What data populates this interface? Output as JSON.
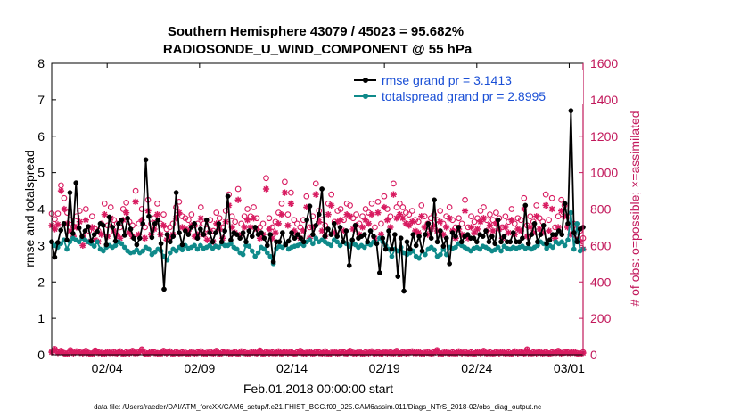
{
  "chart_data": {
    "type": "line",
    "title": "Southern Hemisphere 43079 / 45023 = 95.682%",
    "subtitle": "RADIOSONDE_U_WIND_COMPONENT @ 55 hPa",
    "xlabel": "Feb.01,2018 00:00:00 start",
    "ylabel": "rmse and totalspread",
    "y2label": "# of obs: o=possible; ×=assimilated",
    "x_ticks": [
      {
        "day": 3,
        "label": "02/04"
      },
      {
        "day": 8,
        "label": "02/09"
      },
      {
        "day": 13,
        "label": "02/14"
      },
      {
        "day": 18,
        "label": "02/19"
      },
      {
        "day": 23,
        "label": "02/24"
      },
      {
        "day": 28,
        "label": "03/01"
      }
    ],
    "xlim": [
      0,
      28.75
    ],
    "ylim": [
      0,
      8
    ],
    "y_ticks": [
      0,
      1,
      2,
      3,
      4,
      5,
      6,
      7,
      8
    ],
    "y2lim": [
      0,
      1600
    ],
    "y2_ticks": [
      0,
      200,
      400,
      600,
      800,
      1000,
      1200,
      1400,
      1600
    ],
    "colors": {
      "rmse": "#000000",
      "spread": "#0f8a8a",
      "obs": "#d81b60",
      "axis_right": "#c2185b"
    },
    "series": [
      {
        "name": "rmse grand pr = 3.1413",
        "values": [
          3.1,
          2.68,
          3.08,
          3.42,
          3.6,
          3.15,
          4.45,
          3.33,
          4.72,
          3.48,
          3.25,
          3.4,
          3.52,
          3.12,
          3.3,
          3.38,
          3.6,
          3.55,
          3.02,
          3.78,
          3.5,
          3.12,
          3.6,
          3.7,
          3.28,
          3.75,
          3.45,
          3.2,
          3.02,
          3.2,
          3.6,
          5.35,
          3.8,
          3.22,
          3.6,
          3.7,
          3.05,
          1.8,
          3.3,
          3.1,
          3.25,
          4.45,
          3.35,
          3.02,
          3.4,
          3.3,
          3.5,
          3.6,
          3.2,
          3.45,
          3.3,
          3.7,
          3.35,
          3.1,
          3.35,
          3.6,
          3.1,
          3.4,
          4.35,
          3.15,
          3.35,
          3.3,
          3.2,
          3.35,
          3.1,
          3.4,
          3.25,
          3.5,
          3.3,
          3.35,
          3.2,
          3.0,
          3.3,
          2.55,
          3.1,
          3.1,
          3.35,
          3.02,
          3.12,
          3.35,
          3.2,
          3.3,
          3.2,
          3.1,
          3.7,
          4.08,
          3.3,
          3.55,
          3.85,
          4.55,
          3.25,
          3.45,
          3.3,
          3.6,
          3.25,
          3.5,
          3.1,
          3.4,
          2.45,
          3.15,
          3.55,
          3.2,
          3.25,
          3.3,
          3.1,
          3.4,
          3.25,
          3.05,
          2.25,
          3.2,
          2.9,
          3.4,
          2.9,
          3.3,
          2.15,
          3.2,
          1.75,
          3.1,
          2.9,
          3.3,
          3.0,
          3.25,
          2.85,
          3.3,
          3.6,
          3.2,
          4.25,
          3.1,
          3.4,
          2.98,
          3.2,
          2.5,
          3.35,
          3.25,
          3.5,
          3.1,
          3.25,
          3.3,
          3.2,
          3.2,
          3.1,
          3.3,
          3.25,
          3.4,
          3.1,
          3.25,
          3.05,
          3.7,
          3.1,
          3.25,
          3.1,
          3.1,
          3.35,
          3.1,
          3.1,
          3.2,
          4.1,
          3.05,
          3.3,
          3.6,
          3.1,
          3.3,
          3.55,
          3.05,
          3.15,
          3.3,
          3.3,
          3.4,
          3.3,
          4.15,
          3.6,
          6.7,
          3.35,
          3.1,
          3.45,
          3.5
        ]
      },
      {
        "name": "totalspread grand pr = 2.8995",
        "values": [
          3.1,
          3.0,
          2.95,
          3.05,
          3.15,
          2.9,
          3.1,
          3.2,
          3.15,
          3.1,
          3.2,
          3.15,
          3.1,
          3.05,
          2.98,
          3.1,
          2.9,
          2.85,
          2.95,
          3.0,
          2.95,
          3.0,
          3.1,
          3.05,
          2.95,
          2.85,
          2.8,
          2.82,
          2.88,
          2.8,
          2.85,
          2.95,
          2.9,
          2.75,
          2.82,
          2.9,
          2.85,
          2.7,
          2.6,
          2.8,
          2.9,
          2.85,
          2.95,
          2.88,
          3.0,
          2.92,
          2.95,
          3.0,
          2.9,
          3.0,
          2.92,
          2.95,
          3.0,
          2.92,
          2.98,
          2.95,
          3.05,
          3.0,
          3.0,
          3.05,
          2.95,
          2.9,
          2.8,
          2.75,
          3.0,
          2.98,
          2.85,
          2.7,
          2.8,
          2.95,
          2.9,
          2.8,
          2.7,
          2.5,
          2.92,
          2.98,
          2.95,
          3.05,
          2.9,
          2.95,
          2.98,
          3.0,
          3.05,
          3.0,
          3.1,
          3.15,
          3.05,
          3.2,
          3.1,
          3.15,
          3.1,
          3.05,
          3.0,
          3.15,
          3.1,
          3.0,
          3.1,
          3.05,
          2.98,
          3.05,
          3.02,
          2.95,
          3.0,
          2.95,
          3.05,
          3.02,
          3.1,
          3.05,
          3.2,
          3.1,
          3.0,
          2.9,
          2.7,
          2.9,
          2.85,
          2.95,
          2.8,
          2.75,
          2.8,
          2.85,
          2.7,
          2.65,
          2.85,
          2.75,
          2.9,
          2.95,
          2.88,
          2.7,
          2.75,
          2.9,
          2.75,
          2.95,
          2.92,
          2.95,
          3.05,
          3.0,
          2.95,
          2.9,
          2.85,
          2.92,
          2.95,
          2.9,
          2.98,
          2.95,
          2.9,
          2.85,
          2.88,
          2.95,
          2.85,
          2.98,
          2.92,
          2.9,
          2.95,
          2.92,
          2.95,
          2.98,
          2.92,
          2.95,
          2.9,
          2.95,
          3.0,
          3.1,
          3.05,
          2.92,
          3.0,
          2.95,
          3.1,
          3.05,
          3.1,
          3.0,
          3.15,
          3.9,
          2.9,
          3.6,
          2.85,
          2.9
        ]
      },
      {
        "name": "possible (o)",
        "values": [
          775,
          745,
          775,
          930,
          860,
          780,
          740,
          705,
          760,
          790,
          650,
          800,
          680,
          760,
          690,
          680,
          720,
          830,
          710,
          810,
          740,
          720,
          700,
          800,
          835,
          730,
          710,
          900,
          720,
          800,
          700,
          850,
          720,
          750,
          830,
          720,
          770,
          690,
          700,
          720,
          810,
          840,
          760,
          750,
          740,
          770,
          710,
          720,
          810,
          720,
          690,
          740,
          680,
          780,
          750,
          700,
          790,
          880,
          760,
          730,
          910,
          720,
          760,
          800,
          760,
          810,
          750,
          700,
          720,
          970,
          750,
          700,
          730,
          780,
          830,
          950,
          770,
          890,
          740,
          720,
          700,
          740,
          870,
          700,
          760,
          940,
          790,
          740,
          710,
          830,
          880,
          730,
          790,
          800,
          740,
          830,
          820,
          750,
          770,
          720,
          760,
          800,
          780,
          830,
          700,
          840,
          720,
          870,
          800,
          760,
          940,
          810,
          830,
          810,
          780,
          770,
          790,
          740,
          730,
          820,
          760,
          720,
          750,
          770,
          740,
          790,
          720,
          760,
          810,
          740,
          700,
          750,
          720,
          850,
          700,
          760,
          730,
          750,
          790,
          810,
          740,
          770,
          740,
          780,
          750,
          700,
          760,
          730,
          800,
          720,
          750,
          740,
          860,
          710,
          760,
          730,
          820,
          750,
          730,
          880,
          740,
          860,
          700,
          760,
          850,
          820,
          760,
          720,
          720,
          690,
          680,
          640
        ]
      },
      {
        "name": "assimilated (×)",
        "values": [
          710,
          690,
          715,
          900,
          800,
          720,
          680,
          650,
          700,
          730,
          600,
          740,
          620,
          700,
          630,
          620,
          660,
          770,
          650,
          750,
          680,
          660,
          640,
          740,
          780,
          670,
          650,
          840,
          660,
          740,
          640,
          790,
          660,
          690,
          770,
          660,
          710,
          630,
          640,
          660,
          750,
          780,
          700,
          690,
          680,
          710,
          650,
          660,
          750,
          660,
          630,
          680,
          620,
          720,
          690,
          640,
          730,
          820,
          700,
          670,
          850,
          660,
          700,
          740,
          700,
          750,
          690,
          640,
          660,
          910,
          690,
          640,
          670,
          720,
          770,
          890,
          710,
          830,
          680,
          660,
          640,
          680,
          810,
          640,
          700,
          880,
          730,
          680,
          650,
          770,
          820,
          670,
          730,
          740,
          680,
          770,
          760,
          690,
          710,
          660,
          700,
          740,
          720,
          770,
          640,
          780,
          660,
          810,
          740,
          700,
          880,
          750,
          770,
          750,
          720,
          710,
          730,
          680,
          670,
          760,
          700,
          660,
          690,
          710,
          680,
          730,
          660,
          700,
          750,
          680,
          640,
          690,
          660,
          790,
          640,
          700,
          670,
          690,
          730,
          750,
          680,
          710,
          680,
          720,
          690,
          640,
          700,
          670,
          740,
          660,
          690,
          680,
          800,
          650,
          700,
          670,
          760,
          690,
          670,
          820,
          680,
          800,
          640,
          700,
          790,
          760,
          700,
          660,
          660,
          630,
          620,
          580
        ]
      },
      {
        "name": "possible (o) surface",
        "values": [
          18,
          32,
          14,
          22,
          10,
          8,
          26,
          12,
          20,
          15,
          12,
          22,
          10,
          8,
          24,
          14,
          12,
          9,
          18,
          11,
          16,
          10,
          20,
          8,
          14,
          12,
          22,
          10,
          16,
          30,
          12,
          8,
          18,
          14,
          10,
          9,
          22,
          12,
          20,
          8,
          16,
          10,
          14,
          12,
          8,
          18,
          10,
          14,
          20,
          9,
          12,
          16,
          10,
          22,
          8,
          14,
          18,
          12,
          10,
          16,
          8,
          20,
          14,
          9,
          12,
          18,
          10,
          24,
          8,
          16,
          12,
          14,
          10,
          20,
          9,
          18,
          12,
          16,
          8,
          14,
          22,
          10,
          12,
          18,
          9,
          16,
          14,
          10,
          20,
          8,
          12,
          18,
          10,
          16,
          14,
          9,
          22,
          12,
          10,
          18,
          8,
          14,
          12,
          20,
          10,
          16,
          9,
          18,
          12,
          14,
          10,
          22,
          8,
          16,
          12,
          14,
          20,
          10,
          18,
          9,
          12,
          16,
          10,
          14,
          26,
          8,
          12,
          18,
          10,
          14,
          9,
          20,
          12,
          16,
          10,
          14,
          8,
          18,
          12,
          22,
          10,
          14,
          9,
          16,
          12,
          18,
          10,
          14,
          8,
          20,
          12,
          16,
          10,
          30,
          9,
          14,
          12,
          18,
          10,
          16,
          8,
          14,
          12,
          22,
          10,
          16,
          14,
          12,
          18,
          10,
          8,
          14
        ]
      },
      {
        "name": "assimilated (×) surface",
        "values": [
          14,
          28,
          10,
          18,
          6,
          4,
          22,
          8,
          16,
          11,
          8,
          18,
          6,
          4,
          20,
          10,
          8,
          5,
          14,
          7,
          12,
          6,
          16,
          4,
          10,
          8,
          18,
          6,
          12,
          26,
          8,
          4,
          14,
          10,
          6,
          5,
          18,
          8,
          16,
          4,
          12,
          6,
          10,
          8,
          4,
          14,
          6,
          10,
          16,
          5,
          8,
          12,
          6,
          18,
          4,
          10,
          14,
          8,
          6,
          12,
          4,
          16,
          10,
          5,
          8,
          14,
          6,
          20,
          4,
          12,
          8,
          10,
          6,
          16,
          5,
          14,
          8,
          12,
          4,
          10,
          18,
          6,
          8,
          14,
          5,
          12,
          10,
          6,
          16,
          4,
          8,
          14,
          6,
          12,
          10,
          5,
          18,
          8,
          6,
          14,
          4,
          10,
          8,
          16,
          6,
          12,
          5,
          14,
          8,
          10,
          6,
          18,
          4,
          12,
          8,
          10,
          16,
          6,
          14,
          5,
          8,
          12,
          6,
          10,
          22,
          4,
          8,
          14,
          6,
          10,
          5,
          16,
          8,
          12,
          6,
          10,
          4,
          14,
          8,
          18,
          6,
          10,
          5,
          12,
          8,
          14,
          6,
          10,
          4,
          16,
          8,
          12,
          6,
          26,
          5,
          10,
          8,
          14,
          6,
          12,
          4,
          10,
          8,
          18,
          6,
          12,
          10,
          8,
          14,
          6,
          4,
          10
        ]
      }
    ],
    "legend": [
      {
        "label": "rmse grand pr = 3.1413",
        "color": "#000000"
      },
      {
        "label": "totalspread grand pr = 2.8995",
        "color": "#0f8a8a"
      }
    ],
    "legend_position": "top-right"
  },
  "footer": "data file: /Users/raeder/DAI/ATM_forcXX/CAM6_setup/f.e21.FHIST_BGC.f09_025.CAM6assim.011/Diags_NTrS_2018-02/obs_diag_output.nc"
}
